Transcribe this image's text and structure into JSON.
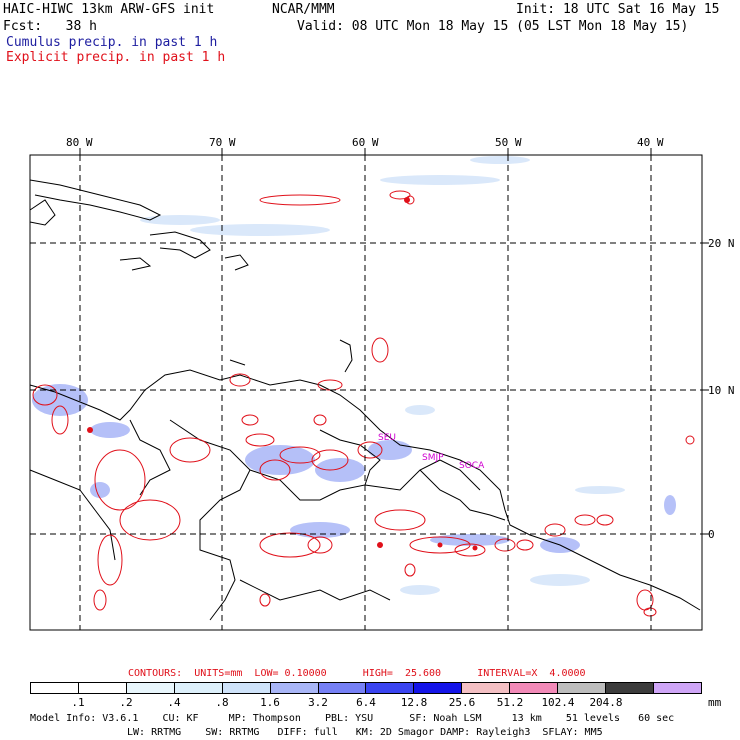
{
  "header": {
    "title_left": "HAIC-HIWC 13km ARW-GFS init",
    "title_center": "NCAR/MMM",
    "init": "Init: 18 UTC Sat 16 May 15",
    "fcst": "Fcst:   38 h",
    "valid": "Valid: 08 UTC Mon 18 May 15 (05 LST Mon 18 May 15)",
    "cumulus_label": "Cumulus precip. in past 1 h",
    "explicit_label": "Explicit precip. in past 1 h"
  },
  "map": {
    "lon_labels": [
      "80 W",
      "70 W",
      "60 W",
      "50 W",
      "40 W"
    ],
    "lat_labels": [
      "20 N",
      "10 N",
      "0"
    ],
    "place_labels": [
      "SEU",
      "SMJP",
      "SOCA"
    ],
    "colors": {
      "cumulus": "#1e1ea0",
      "explicit": "#e0101a",
      "place_label": "#d000d0"
    }
  },
  "contours": {
    "text": "CONTOURS:  UNITS=mm  LOW= 0.10000      HIGH=  25.600      INTERVAL=X  4.0000"
  },
  "colorbar": {
    "unit": "mm",
    "labels": [
      ".1",
      ".2",
      ".4",
      ".8",
      "1.6",
      "3.2",
      "6.4",
      "12.8",
      "25.6",
      "51.2",
      "102.4",
      "204.8"
    ],
    "colors": [
      "#ffffff",
      "#ffffff",
      "#e8f6fc",
      "#ddf0fb",
      "#cfe3fa",
      "#a9b6f7",
      "#7680f5",
      "#3a44f0",
      "#1414e8",
      "#f4c0c4",
      "#f28ab8",
      "#bdbdbd",
      "#3c3c3c",
      "#cfa6f7"
    ]
  },
  "footer": {
    "line1": "Model Info: V3.6.1    CU: KF     MP: Thompson    PBL: YSU      SF: Noah LSM     13 km    51 levels   60 sec",
    "line2": "LW: RRTMG    SW: RRTMG   DIFF: full   KM: 2D Smagor DAMP: Rayleigh3  SFLAY: MM5"
  }
}
